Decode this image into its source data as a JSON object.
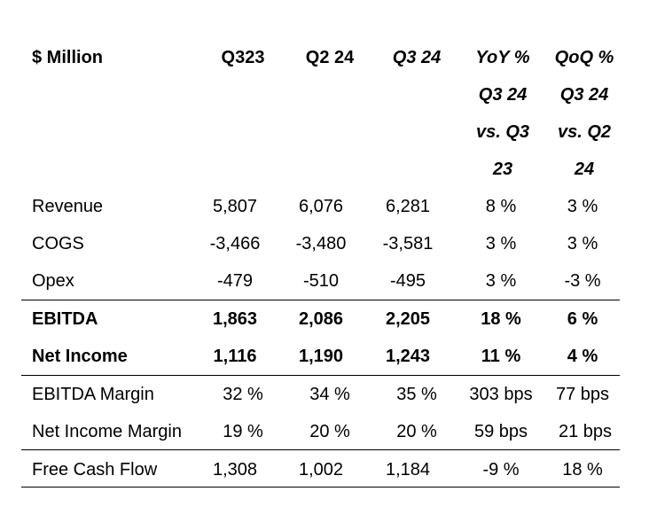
{
  "table": {
    "header": {
      "label": "$ Million",
      "col1": "Q323",
      "col2": "Q2 24",
      "col3": "Q3 24",
      "yoy": [
        "YoY %",
        "Q3 24",
        "vs. Q3",
        "23"
      ],
      "qoq": [
        "QoQ %",
        "Q3 24",
        "vs. Q2",
        "24"
      ]
    },
    "rows": [
      {
        "label": "Revenue",
        "q323": "5,807",
        "q224": "6,076",
        "q324": "6,281",
        "yoy": "8 %",
        "qoq": "3 %"
      },
      {
        "label": "COGS",
        "q323": "-3,466",
        "q224": "-3,480",
        "q324": "-3,581",
        "yoy": "3 %",
        "qoq": "3 %"
      },
      {
        "label": "Opex",
        "q323": "-479",
        "q224": "-510",
        "q324": "-495",
        "yoy": "3 %",
        "qoq": "-3 %"
      },
      {
        "label": "EBITDA",
        "q323": "1,863",
        "q224": "2,086",
        "q324": "2,205",
        "yoy": "18 %",
        "qoq": "6 %"
      },
      {
        "label": "Net Income",
        "q323": "1,116",
        "q224": "1,190",
        "q324": "1,243",
        "yoy": "11 %",
        "qoq": "4 %"
      },
      {
        "label": "EBITDA Margin",
        "q323": "32 %",
        "q224": "34 %",
        "q324": "35 %",
        "yoy": "303 bps",
        "qoq": "77 bps"
      },
      {
        "label": "Net Income Margin",
        "q323": "19 %",
        "q224": "20 %",
        "q324": "20 %",
        "yoy": "59 bps",
        "qoq": "21 bps"
      },
      {
        "label": "Free Cash Flow",
        "q323": "1,308",
        "q224": "1,002",
        "q324": "1,184",
        "yoy": "-9 %",
        "qoq": "18 %"
      }
    ]
  }
}
